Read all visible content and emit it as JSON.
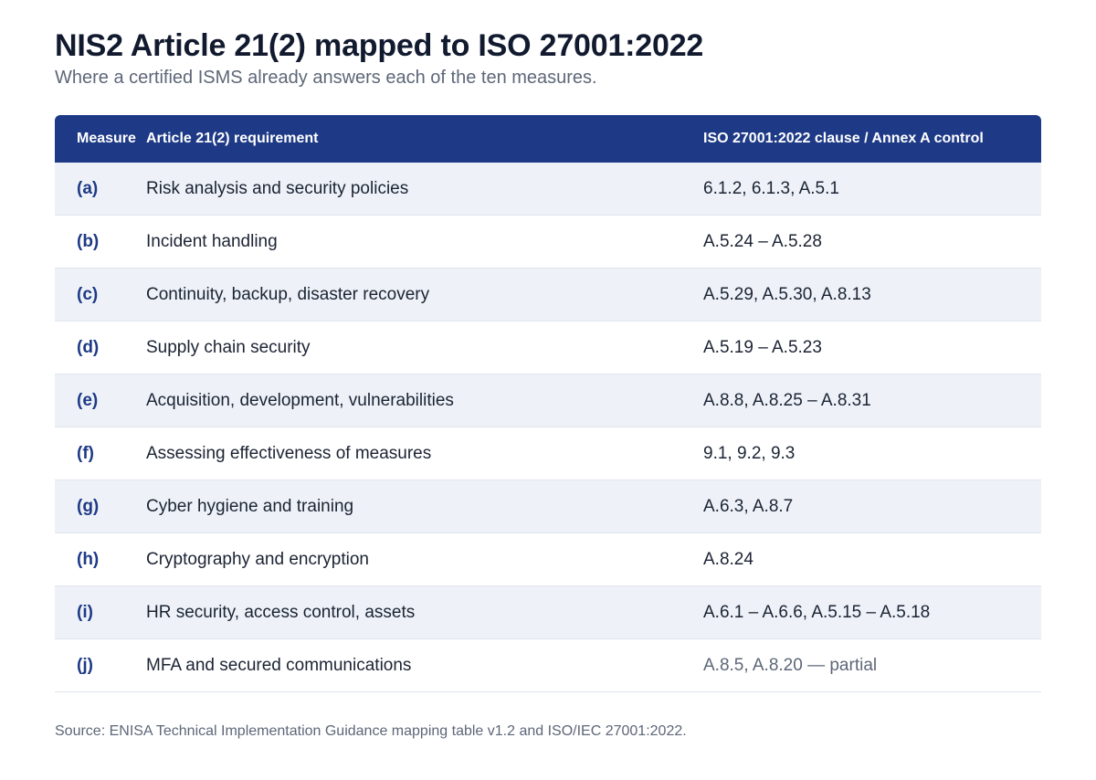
{
  "title": "NIS2 Article 21(2) mapped to ISO 27001:2022",
  "subtitle": "Where a certified ISMS already answers each of the ten measures.",
  "table": {
    "headers": {
      "measure": "Measure",
      "requirement": "Article 21(2) requirement",
      "iso": "ISO 27001:2022 clause / Annex A control"
    },
    "rows": [
      {
        "measure": "(a)",
        "requirement": "Risk analysis and security policies",
        "iso": "6.1.2, 6.1.3, A.5.1"
      },
      {
        "measure": "(b)",
        "requirement": "Incident handling",
        "iso": "A.5.24 – A.5.28"
      },
      {
        "measure": "(c)",
        "requirement": "Continuity, backup, disaster recovery",
        "iso": "A.5.29, A.5.30, A.8.13"
      },
      {
        "measure": "(d)",
        "requirement": "Supply chain security",
        "iso": "A.5.19 – A.5.23"
      },
      {
        "measure": "(e)",
        "requirement": "Acquisition, development, vulnerabilities",
        "iso": "A.8.8, A.8.25 – A.8.31"
      },
      {
        "measure": "(f)",
        "requirement": "Assessing effectiveness of measures",
        "iso": "9.1, 9.2, 9.3"
      },
      {
        "measure": "(g)",
        "requirement": "Cyber hygiene and training",
        "iso": "A.6.3, A.8.7"
      },
      {
        "measure": "(h)",
        "requirement": "Cryptography and encryption",
        "iso": "A.8.24"
      },
      {
        "measure": "(i)",
        "requirement": "HR security, access control, assets",
        "iso": "A.6.1 – A.6.6, A.5.15 – A.5.18"
      },
      {
        "measure": "(j)",
        "requirement": "MFA and secured communications",
        "iso": "A.8.5, A.8.20 — partial"
      }
    ]
  },
  "source": "Source: ENISA Technical Implementation Guidance mapping table v1.2 and ISO/IEC 27001:2022.",
  "colors": {
    "header_bg": "#1e3a86",
    "measure_text": "#1e3a86",
    "shaded_row": "#eef2f8",
    "muted_text": "#5d6778"
  }
}
